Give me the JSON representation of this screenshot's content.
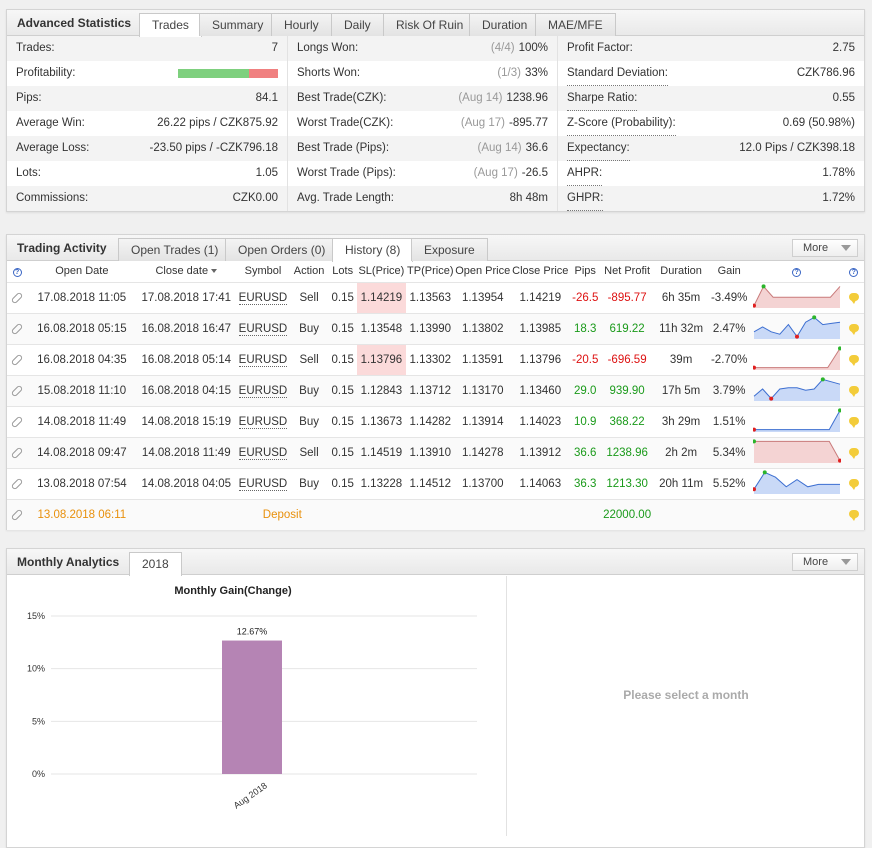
{
  "advanced": {
    "title": "Advanced Statistics",
    "tabs": [
      "Trades",
      "Summary",
      "Hourly",
      "Daily",
      "Risk Of Ruin",
      "Duration",
      "MAE/MFE"
    ],
    "col1": [
      {
        "label": "Trades:",
        "value": "7"
      },
      {
        "label": "Profitability:",
        "value": ""
      },
      {
        "label": "Pips:",
        "value": "84.1"
      },
      {
        "label": "Average Win:",
        "value": "26.22 pips / CZK875.92"
      },
      {
        "label": "Average Loss:",
        "value": "-23.50 pips / -CZK796.18"
      },
      {
        "label": "Lots:",
        "value": "1.05"
      },
      {
        "label": "Commissions:",
        "value": "CZK0.00"
      }
    ],
    "profitability": {
      "win_fraction": 0.71,
      "loss_fraction": 0.29
    },
    "col2": [
      {
        "label": "Longs Won:",
        "muted": "(4/4)",
        "value": "100%"
      },
      {
        "label": "Shorts Won:",
        "muted": "(1/3)",
        "value": "33%"
      },
      {
        "label": "Best Trade(CZK):",
        "muted": "(Aug 14)",
        "value": "1238.96"
      },
      {
        "label": "Worst Trade(CZK):",
        "muted": "(Aug 17)",
        "value": "-895.77"
      },
      {
        "label": "Best Trade (Pips):",
        "muted": "(Aug 14)",
        "value": "36.6"
      },
      {
        "label": "Worst Trade (Pips):",
        "muted": "(Aug 17)",
        "value": "-26.5"
      },
      {
        "label": "Avg. Trade Length:",
        "muted": "",
        "value": "8h 48m"
      }
    ],
    "col3": [
      {
        "label": "Profit Factor:",
        "value": "2.75"
      },
      {
        "label": "Standard Deviation:",
        "value": "CZK786.96"
      },
      {
        "label": "Sharpe Ratio:",
        "value": "0.55"
      },
      {
        "label": "Z-Score (Probability):",
        "value": "0.69 (50.98%)"
      },
      {
        "label": "Expectancy:",
        "value": "12.0 Pips / CZK398.18"
      },
      {
        "label": "AHPR:",
        "value": "1.78%"
      },
      {
        "label": "GHPR:",
        "value": "1.72%"
      }
    ]
  },
  "activity": {
    "title": "Trading Activity",
    "tabs": [
      "Open Trades (1)",
      "Open Orders (0)",
      "History (8)",
      "Exposure"
    ],
    "more": "More",
    "help": "?",
    "headers": [
      "Open Date",
      "Close date",
      "Symbol",
      "Action",
      "Lots",
      "SL(Price)",
      "TP(Price)",
      "Open Price",
      "Close Price",
      "Pips",
      "Net Profit",
      "Duration",
      "Gain"
    ],
    "rows": [
      {
        "open": "17.08.2018 11:05",
        "close": "17.08.2018 17:41",
        "symbol": "EURUSD",
        "action": "Sell",
        "lots": "0.15",
        "sl": "1.14219",
        "tp": "1.13563",
        "op": "1.13954",
        "cp": "1.14219",
        "pips": "-26.5",
        "profit": "-895.77",
        "duration": "6h 35m",
        "gain": "-3.49%",
        "positive": false,
        "sl_hit": true,
        "spark": [
          0.1,
          0.9,
          0.45,
          0.45,
          0.45,
          0.45,
          0.45,
          0.45,
          0.45,
          0.9
        ]
      },
      {
        "open": "16.08.2018 05:15",
        "close": "16.08.2018 16:47",
        "symbol": "EURUSD",
        "action": "Buy",
        "lots": "0.15",
        "sl": "1.13548",
        "tp": "1.13990",
        "op": "1.13802",
        "cp": "1.13985",
        "pips": "18.3",
        "profit": "619.22",
        "duration": "11h 32m",
        "gain": "2.47%",
        "positive": true,
        "sl_hit": false,
        "spark": [
          0.3,
          0.5,
          0.3,
          0.2,
          0.6,
          0.1,
          0.7,
          0.9,
          0.6,
          0.65,
          0.7
        ]
      },
      {
        "open": "16.08.2018 04:35",
        "close": "16.08.2018 05:14",
        "symbol": "EURUSD",
        "action": "Sell",
        "lots": "0.15",
        "sl": "1.13796",
        "tp": "1.13302",
        "op": "1.13591",
        "cp": "1.13796",
        "pips": "-20.5",
        "profit": "-696.59",
        "duration": "39m",
        "gain": "-2.70%",
        "positive": false,
        "sl_hit": true,
        "spark": [
          0.1,
          0.1,
          0.1,
          0.1,
          0.1,
          0.1,
          0.1,
          0.9
        ]
      },
      {
        "open": "15.08.2018 11:10",
        "close": "16.08.2018 04:15",
        "symbol": "EURUSD",
        "action": "Buy",
        "lots": "0.15",
        "sl": "1.12843",
        "tp": "1.13712",
        "op": "1.13170",
        "cp": "1.13460",
        "pips": "29.0",
        "profit": "939.90",
        "duration": "17h 5m",
        "gain": "3.79%",
        "positive": true,
        "sl_hit": false,
        "spark": [
          0.2,
          0.5,
          0.1,
          0.5,
          0.55,
          0.55,
          0.45,
          0.5,
          0.9,
          0.8,
          0.7
        ]
      },
      {
        "open": "14.08.2018 11:49",
        "close": "14.08.2018 15:19",
        "symbol": "EURUSD",
        "action": "Buy",
        "lots": "0.15",
        "sl": "1.13673",
        "tp": "1.14282",
        "op": "1.13914",
        "cp": "1.14023",
        "pips": "10.9",
        "profit": "368.22",
        "duration": "3h 29m",
        "gain": "1.51%",
        "positive": true,
        "sl_hit": false,
        "spark": [
          0.1,
          0.1,
          0.1,
          0.1,
          0.1,
          0.1,
          0.1,
          0.1,
          0.9
        ]
      },
      {
        "open": "14.08.2018 09:47",
        "close": "14.08.2018 11:49",
        "symbol": "EURUSD",
        "action": "Sell",
        "lots": "0.15",
        "sl": "1.14519",
        "tp": "1.13910",
        "op": "1.14278",
        "cp": "1.13912",
        "pips": "36.6",
        "profit": "1238.96",
        "duration": "2h 2m",
        "gain": "5.34%",
        "positive": true,
        "sl_hit": false,
        "spark_neg": true,
        "spark": [
          0.9,
          0.9,
          0.9,
          0.9,
          0.9,
          0.9,
          0.9,
          0.9,
          0.1
        ]
      },
      {
        "open": "13.08.2018 07:54",
        "close": "14.08.2018 04:05",
        "symbol": "EURUSD",
        "action": "Buy",
        "lots": "0.15",
        "sl": "1.13228",
        "tp": "1.14512",
        "op": "1.13700",
        "cp": "1.14063",
        "pips": "36.3",
        "profit": "1213.30",
        "duration": "20h 11m",
        "gain": "5.52%",
        "positive": true,
        "sl_hit": false,
        "spark": [
          0.2,
          0.9,
          0.7,
          0.3,
          0.6,
          0.3,
          0.4,
          0.4,
          0.4
        ]
      }
    ],
    "deposit": {
      "date": "13.08.2018 06:11",
      "label": "Deposit",
      "amount": "22000.00"
    }
  },
  "monthly": {
    "title": "Monthly Analytics",
    "tabs": [
      "2018"
    ],
    "more": "More",
    "empty_message": "Please select a month",
    "chart_data": {
      "type": "bar",
      "title": "Monthly Gain(Change)",
      "categories": [
        "Aug 2018"
      ],
      "values": [
        12.67
      ],
      "value_labels": [
        "12.67%"
      ],
      "yticks": [
        "15%",
        "10%",
        "5%",
        "0%"
      ],
      "ylim": [
        0,
        15
      ],
      "bar_color": "#b584b4",
      "grid": true
    }
  }
}
